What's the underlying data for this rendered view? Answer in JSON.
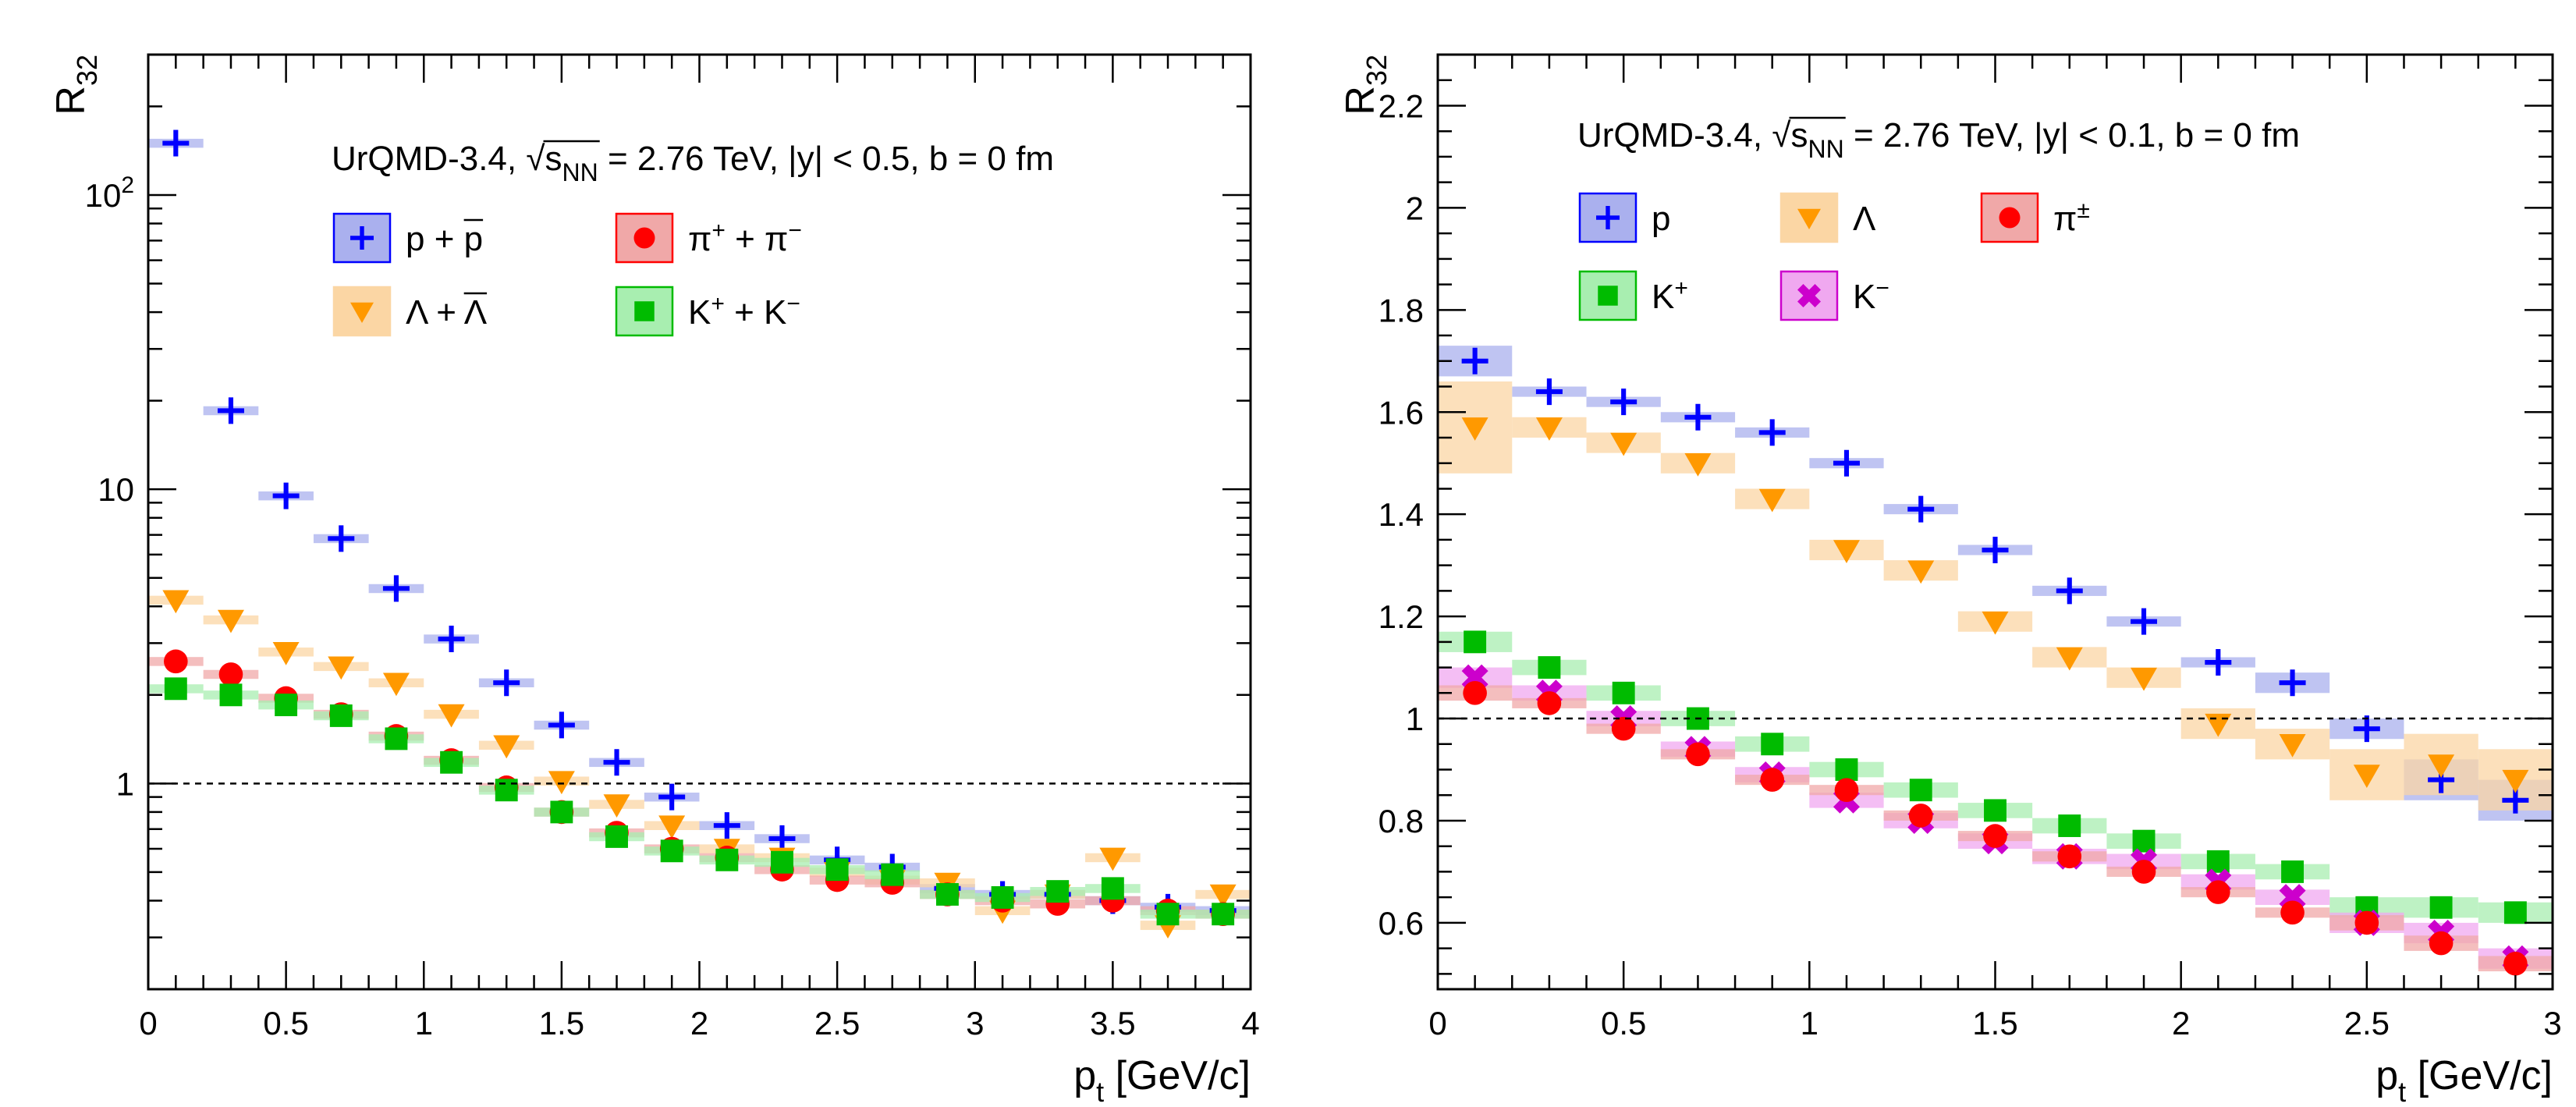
{
  "chart_data": [
    {
      "type": "scatter",
      "id": "left",
      "header": {
        "model": "UrQMD-3.4, ",
        "sqrt": "s",
        "sqrt_sub": "NN",
        "rest": " = 2.76 TeV, |y| < 0.5, b = 0 fm"
      },
      "xlabel": {
        "main": "p",
        "sub": "t",
        "unit": " [GeV/c]"
      },
      "ylabel": {
        "main": "R",
        "sub": "32"
      },
      "yscale": "log",
      "xlim": [
        0,
        4
      ],
      "ylim": [
        0.2,
        300
      ],
      "xticks": [
        {
          "v": 0,
          "label": "0"
        },
        {
          "v": 0.5,
          "label": "0.5"
        },
        {
          "v": 1,
          "label": "1"
        },
        {
          "v": 1.5,
          "label": "1.5"
        },
        {
          "v": 2,
          "label": "2"
        },
        {
          "v": 2.5,
          "label": "2.5"
        },
        {
          "v": 3,
          "label": "3"
        },
        {
          "v": 3.5,
          "label": "3.5"
        },
        {
          "v": 4,
          "label": "4"
        }
      ],
      "yticks": [
        {
          "v": 1,
          "label": "1"
        },
        {
          "v": 10,
          "label": "10"
        },
        {
          "v": 100,
          "label": "10",
          "sup": "2"
        }
      ],
      "reference_line": 1,
      "bin_half_width": 0.1,
      "legend": [
        {
          "marker": "cross",
          "color": "#0000ff",
          "band": "#aab0ee",
          "label": "p + ",
          "bar": "p",
          "rest": "",
          "sup": ""
        },
        {
          "marker": "circle",
          "color": "#ff0000",
          "band": "#f0a8a8",
          "label": "π",
          "sup": "+",
          "rest": " + π",
          "sup2": "−"
        },
        {
          "marker": "triangle",
          "color": "#ff9900",
          "band": "#fbd6a4",
          "label": "Λ + ",
          "bar": "Λ"
        },
        {
          "marker": "square",
          "color": "#00bb00",
          "band": "#a8eeb0",
          "label": "K",
          "sup": "+",
          "rest": " + K",
          "sup2": "−"
        }
      ],
      "series": [
        {
          "name": "p + pbar",
          "marker": "cross",
          "color": "#0000ff",
          "band": "#aab0ee",
          "x": [
            0.1,
            0.3,
            0.5,
            0.7,
            0.9,
            1.1,
            1.3,
            1.5,
            1.7,
            1.9,
            2.1,
            2.3,
            2.5,
            2.7,
            2.9,
            3.1,
            3.3,
            3.5,
            3.7,
            3.9
          ],
          "y": [
            150,
            18.5,
            9.5,
            6.8,
            4.6,
            3.1,
            2.2,
            1.58,
            1.18,
            0.9,
            0.72,
            0.65,
            0.55,
            0.52,
            0.44,
            0.42,
            0.42,
            0.4,
            0.38,
            0.37
          ]
        },
        {
          "name": "Lambda + Lambdabar",
          "marker": "triangle",
          "color": "#ff9900",
          "band": "#fbd6a4",
          "x": [
            0.1,
            0.3,
            0.5,
            0.7,
            0.9,
            1.1,
            1.3,
            1.5,
            1.7,
            1.9,
            2.1,
            2.3,
            2.5,
            2.7,
            2.9,
            3.1,
            3.3,
            3.5,
            3.7,
            3.9
          ],
          "y": [
            4.2,
            3.6,
            2.8,
            2.5,
            2.2,
            1.72,
            1.35,
            1.02,
            0.85,
            0.72,
            0.6,
            0.56,
            0.5,
            0.47,
            0.46,
            0.37,
            0.42,
            0.56,
            0.33,
            0.42
          ]
        },
        {
          "name": "pi+ + pi-",
          "marker": "circle",
          "color": "#ff0000",
          "band": "#f0a8a8",
          "x": [
            0.1,
            0.3,
            0.5,
            0.7,
            0.9,
            1.1,
            1.3,
            1.5,
            1.7,
            1.9,
            2.1,
            2.3,
            2.5,
            2.7,
            2.9,
            3.1,
            3.3,
            3.5,
            3.7,
            3.9
          ],
          "y": [
            2.6,
            2.35,
            1.95,
            1.72,
            1.45,
            1.2,
            0.97,
            0.8,
            0.68,
            0.6,
            0.56,
            0.51,
            0.47,
            0.46,
            0.42,
            0.4,
            0.39,
            0.4,
            0.37,
            0.36
          ]
        },
        {
          "name": "K+ + K-",
          "marker": "square",
          "color": "#00bb00",
          "band": "#a8eeb0",
          "x": [
            0.1,
            0.3,
            0.5,
            0.7,
            0.9,
            1.1,
            1.3,
            1.5,
            1.7,
            1.9,
            2.1,
            2.3,
            2.5,
            2.7,
            2.9,
            3.1,
            3.3,
            3.5,
            3.7,
            3.9
          ],
          "y": [
            2.1,
            2.0,
            1.85,
            1.7,
            1.42,
            1.18,
            0.95,
            0.8,
            0.66,
            0.59,
            0.55,
            0.54,
            0.51,
            0.49,
            0.42,
            0.41,
            0.43,
            0.44,
            0.36,
            0.36
          ]
        }
      ]
    },
    {
      "type": "scatter",
      "id": "right",
      "header": {
        "model": "UrQMD-3.4, ",
        "sqrt": "s",
        "sqrt_sub": "NN",
        "rest": " = 2.76 TeV, |y| < 0.1, b = 0 fm"
      },
      "xlabel": {
        "main": "p",
        "sub": "t",
        "unit": " [GeV/c]"
      },
      "ylabel": {
        "main": "R",
        "sub": "32"
      },
      "yscale": "linear",
      "xlim": [
        0,
        3
      ],
      "ylim": [
        0.47,
        2.3
      ],
      "xticks": [
        {
          "v": 0,
          "label": "0"
        },
        {
          "v": 0.5,
          "label": "0.5"
        },
        {
          "v": 1,
          "label": "1"
        },
        {
          "v": 1.5,
          "label": "1.5"
        },
        {
          "v": 2,
          "label": "2"
        },
        {
          "v": 2.5,
          "label": "2.5"
        },
        {
          "v": 3,
          "label": "3"
        }
      ],
      "yticks": [
        {
          "v": 0.6,
          "label": "0.6"
        },
        {
          "v": 0.8,
          "label": "0.8"
        },
        {
          "v": 1,
          "label": "1"
        },
        {
          "v": 1.2,
          "label": "1.2"
        },
        {
          "v": 1.4,
          "label": "1.4"
        },
        {
          "v": 1.6,
          "label": "1.6"
        },
        {
          "v": 1.8,
          "label": "1.8"
        },
        {
          "v": 2,
          "label": "2"
        },
        {
          "v": 2.2,
          "label": "2.2"
        }
      ],
      "reference_line": 1,
      "bin_half_width": 0.1,
      "legend": [
        {
          "marker": "cross",
          "color": "#0000ff",
          "band": "#aab0ee",
          "label": "p"
        },
        {
          "marker": "triangle",
          "color": "#ff9900",
          "band": "#fbd6a4",
          "label": "Λ"
        },
        {
          "marker": "circle",
          "color": "#ff0000",
          "band": "#f0a8a8",
          "label": "π",
          "sup": "±"
        },
        {
          "marker": "square",
          "color": "#00bb00",
          "band": "#a8eeb0",
          "label": "K",
          "sup": "+"
        },
        {
          "marker": "x",
          "color": "#cc00cc",
          "band": "#f0a8f0",
          "label": "K",
          "sup": "−"
        }
      ],
      "series": [
        {
          "name": "p",
          "marker": "cross",
          "color": "#0000ff",
          "band": "#aab0ee",
          "x": [
            0.1,
            0.3,
            0.5,
            0.7,
            0.9,
            1.1,
            1.3,
            1.5,
            1.7,
            1.9,
            2.1,
            2.3,
            2.5,
            2.7,
            2.9
          ],
          "y": [
            1.7,
            1.64,
            1.62,
            1.59,
            1.56,
            1.5,
            1.41,
            1.33,
            1.25,
            1.19,
            1.11,
            1.07,
            0.98,
            0.88,
            0.84
          ],
          "err": [
            0.03,
            0.01,
            0.01,
            0.01,
            0.01,
            0.01,
            0.01,
            0.01,
            0.01,
            0.01,
            0.01,
            0.02,
            0.02,
            0.04,
            0.04
          ]
        },
        {
          "name": "Lambda",
          "marker": "triangle",
          "color": "#ff9900",
          "band": "#fbd6a4",
          "x": [
            0.1,
            0.3,
            0.5,
            0.7,
            0.9,
            1.1,
            1.3,
            1.5,
            1.7,
            1.9,
            2.1,
            2.3,
            2.5,
            2.7,
            2.9
          ],
          "y": [
            1.57,
            1.57,
            1.54,
            1.5,
            1.43,
            1.33,
            1.29,
            1.19,
            1.12,
            1.08,
            0.99,
            0.95,
            0.89,
            0.91,
            0.88
          ],
          "err": [
            0.09,
            0.02,
            0.02,
            0.02,
            0.02,
            0.02,
            0.02,
            0.02,
            0.02,
            0.02,
            0.03,
            0.03,
            0.05,
            0.06,
            0.06
          ]
        },
        {
          "name": "K+",
          "marker": "square",
          "color": "#00bb00",
          "band": "#a8eeb0",
          "x": [
            0.1,
            0.3,
            0.5,
            0.7,
            0.9,
            1.1,
            1.3,
            1.5,
            1.7,
            1.9,
            2.1,
            2.3,
            2.5,
            2.7,
            2.9
          ],
          "y": [
            1.15,
            1.1,
            1.05,
            1.0,
            0.95,
            0.9,
            0.86,
            0.82,
            0.79,
            0.76,
            0.72,
            0.7,
            0.63,
            0.63,
            0.62
          ],
          "err": [
            0.02,
            0.015,
            0.015,
            0.015,
            0.015,
            0.015,
            0.015,
            0.015,
            0.015,
            0.015,
            0.015,
            0.015,
            0.02,
            0.02,
            0.02
          ]
        },
        {
          "name": "K-",
          "marker": "x",
          "color": "#cc00cc",
          "band": "#f0a8f0",
          "x": [
            0.1,
            0.3,
            0.5,
            0.7,
            0.9,
            1.1,
            1.3,
            1.5,
            1.7,
            1.9,
            2.1,
            2.3,
            2.5,
            2.7,
            2.9
          ],
          "y": [
            1.08,
            1.05,
            1.0,
            0.94,
            0.89,
            0.84,
            0.8,
            0.76,
            0.73,
            0.72,
            0.68,
            0.65,
            0.6,
            0.58,
            0.53
          ],
          "err": [
            0.02,
            0.015,
            0.015,
            0.015,
            0.015,
            0.015,
            0.015,
            0.015,
            0.015,
            0.015,
            0.015,
            0.015,
            0.02,
            0.02,
            0.02
          ]
        },
        {
          "name": "pi+-",
          "marker": "circle",
          "color": "#ff0000",
          "band": "#f0a8a8",
          "x": [
            0.1,
            0.3,
            0.5,
            0.7,
            0.9,
            1.1,
            1.3,
            1.5,
            1.7,
            1.9,
            2.1,
            2.3,
            2.5,
            2.7,
            2.9
          ],
          "y": [
            1.05,
            1.03,
            0.98,
            0.93,
            0.88,
            0.86,
            0.81,
            0.77,
            0.73,
            0.7,
            0.66,
            0.62,
            0.6,
            0.56,
            0.52
          ],
          "err": [
            0.015,
            0.01,
            0.01,
            0.01,
            0.01,
            0.01,
            0.01,
            0.01,
            0.01,
            0.01,
            0.01,
            0.01,
            0.015,
            0.015,
            0.015
          ]
        }
      ]
    }
  ]
}
